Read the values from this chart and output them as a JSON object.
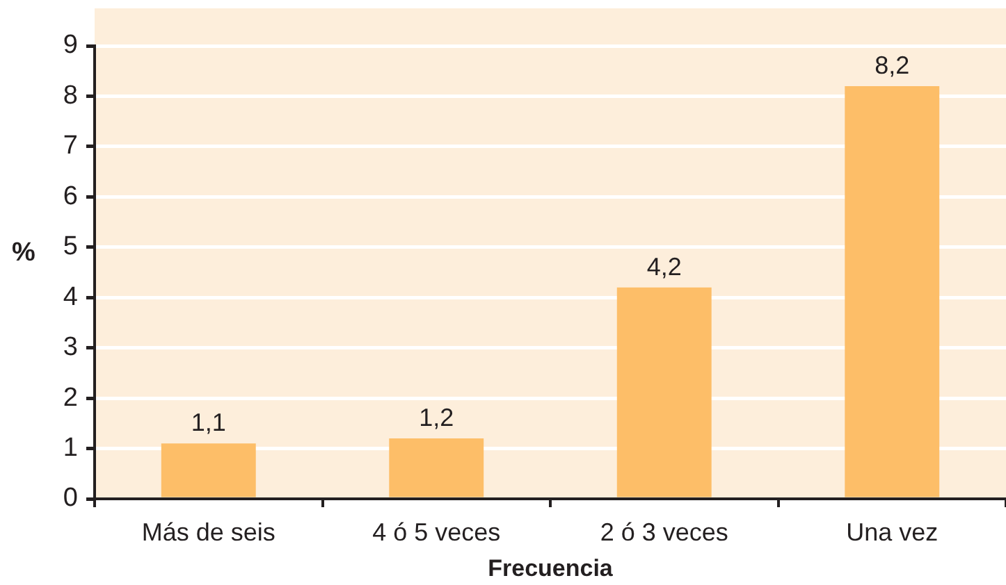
{
  "chart_data": {
    "type": "bar",
    "xlabel": "Frecuencia",
    "ylabel": "%",
    "categories": [
      "Más de seis",
      "4 ó 5 veces",
      "2 ó 3 veces",
      "Una vez"
    ],
    "values": [
      1.1,
      1.2,
      4.2,
      8.2
    ],
    "value_labels": [
      "1,1",
      "1,2",
      "4,2",
      "8,2"
    ],
    "color": "#fdbe68",
    "ylim": [
      0,
      9
    ],
    "yticks": [
      0,
      1,
      2,
      3,
      4,
      5,
      6,
      7,
      8,
      9
    ],
    "grid": "y"
  }
}
